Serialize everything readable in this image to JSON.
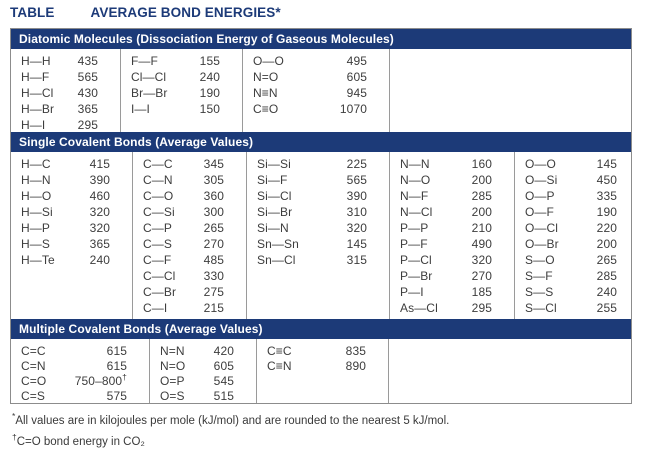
{
  "title": {
    "label": "TABLE",
    "text": "AVERAGE BOND ENERGIES*"
  },
  "colors": {
    "navy": "#1c3a78",
    "body_text": "#3d3d3d",
    "header_text": "#ffffff",
    "border": "#8c8c8c"
  },
  "sections": [
    {
      "header": "Diatomic Molecules (Dissociation Energy of Gaseous Molecules)",
      "columns": [
        [
          {
            "b": "H—H",
            "v": "435"
          },
          {
            "b": "H—F",
            "v": "565"
          },
          {
            "b": "H—Cl",
            "v": "430"
          },
          {
            "b": "H—Br",
            "v": "365"
          },
          {
            "b": "H—I",
            "v": "295"
          }
        ],
        [
          {
            "b": "F—F",
            "v": "155"
          },
          {
            "b": "Cl—Cl",
            "v": "240"
          },
          {
            "b": "Br—Br",
            "v": "190"
          },
          {
            "b": "I—I",
            "v": "150"
          }
        ],
        [
          {
            "b": "O—O",
            "v": "495"
          },
          {
            "b": "N=O",
            "v": "605"
          },
          {
            "b": "N≡N",
            "v": "945"
          },
          {
            "b": "C≡O",
            "v": "1070"
          }
        ],
        []
      ]
    },
    {
      "header": "Single Covalent Bonds (Average Values)",
      "columns": [
        [
          {
            "b": "H—C",
            "v": "415"
          },
          {
            "b": "H—N",
            "v": "390"
          },
          {
            "b": "H—O",
            "v": "460"
          },
          {
            "b": "H—Si",
            "v": "320"
          },
          {
            "b": "H—P",
            "v": "320"
          },
          {
            "b": "H—S",
            "v": "365"
          },
          {
            "b": "H—Te",
            "v": "240"
          }
        ],
        [
          {
            "b": "C—C",
            "v": "345"
          },
          {
            "b": "C—N",
            "v": "305"
          },
          {
            "b": "C—O",
            "v": "360"
          },
          {
            "b": "C—Si",
            "v": "300"
          },
          {
            "b": "C—P",
            "v": "265"
          },
          {
            "b": "C—S",
            "v": "270"
          },
          {
            "b": "C—F",
            "v": "485"
          },
          {
            "b": "C—Cl",
            "v": "330"
          },
          {
            "b": "C—Br",
            "v": "275"
          },
          {
            "b": "C—I",
            "v": "215"
          }
        ],
        [
          {
            "b": "Si—Si",
            "v": "225"
          },
          {
            "b": "Si—F",
            "v": "565"
          },
          {
            "b": "Si—Cl",
            "v": "390"
          },
          {
            "b": "Si—Br",
            "v": "310"
          },
          {
            "b": "Si—N",
            "v": "320"
          },
          {
            "b": "Sn—Sn",
            "v": "145"
          },
          {
            "b": "Sn—Cl",
            "v": "315"
          }
        ],
        [
          {
            "b": "N—N",
            "v": "160"
          },
          {
            "b": "N—O",
            "v": "200"
          },
          {
            "b": "N—F",
            "v": "285"
          },
          {
            "b": "N—Cl",
            "v": "200"
          },
          {
            "b": "P—P",
            "v": "210"
          },
          {
            "b": "P—F",
            "v": "490"
          },
          {
            "b": "P—Cl",
            "v": "320"
          },
          {
            "b": "P—Br",
            "v": "270"
          },
          {
            "b": "P—I",
            "v": "185"
          },
          {
            "b": "As—Cl",
            "v": "295"
          }
        ],
        [
          {
            "b": "O—O",
            "v": "145"
          },
          {
            "b": "O—Si",
            "v": "450"
          },
          {
            "b": "O—P",
            "v": "335"
          },
          {
            "b": "O—F",
            "v": "190"
          },
          {
            "b": "O—Cl",
            "v": "220"
          },
          {
            "b": "O—Br",
            "v": "200"
          },
          {
            "b": "S—O",
            "v": "265"
          },
          {
            "b": "S—F",
            "v": "285"
          },
          {
            "b": "S—S",
            "v": "240"
          },
          {
            "b": "S—Cl",
            "v": "255"
          }
        ]
      ]
    },
    {
      "header": "Multiple Covalent Bonds (Average Values)",
      "columns": [
        [
          {
            "b": "C=C",
            "v": "615"
          },
          {
            "b": "C=N",
            "v": "615"
          },
          {
            "b": "C=O",
            "v": "750–800",
            "s": "†"
          },
          {
            "b": "C=S",
            "v": "575"
          }
        ],
        [
          {
            "b": "N=N",
            "v": "420"
          },
          {
            "b": "N=O",
            "v": "605"
          },
          {
            "b": "O=P",
            "v": "545"
          },
          {
            "b": "O=S",
            "v": "515"
          }
        ],
        [
          {
            "b": "C≡C",
            "v": "835"
          },
          {
            "b": "C≡N",
            "v": "890"
          }
        ],
        []
      ]
    }
  ],
  "footnotes": [
    {
      "marker": "*",
      "text": "All values are in kilojoules per mole (kJ/mol) and are rounded to the nearest 5 kJ/mol."
    },
    {
      "marker": "†",
      "text": "C=O bond energy in CO₂"
    }
  ]
}
